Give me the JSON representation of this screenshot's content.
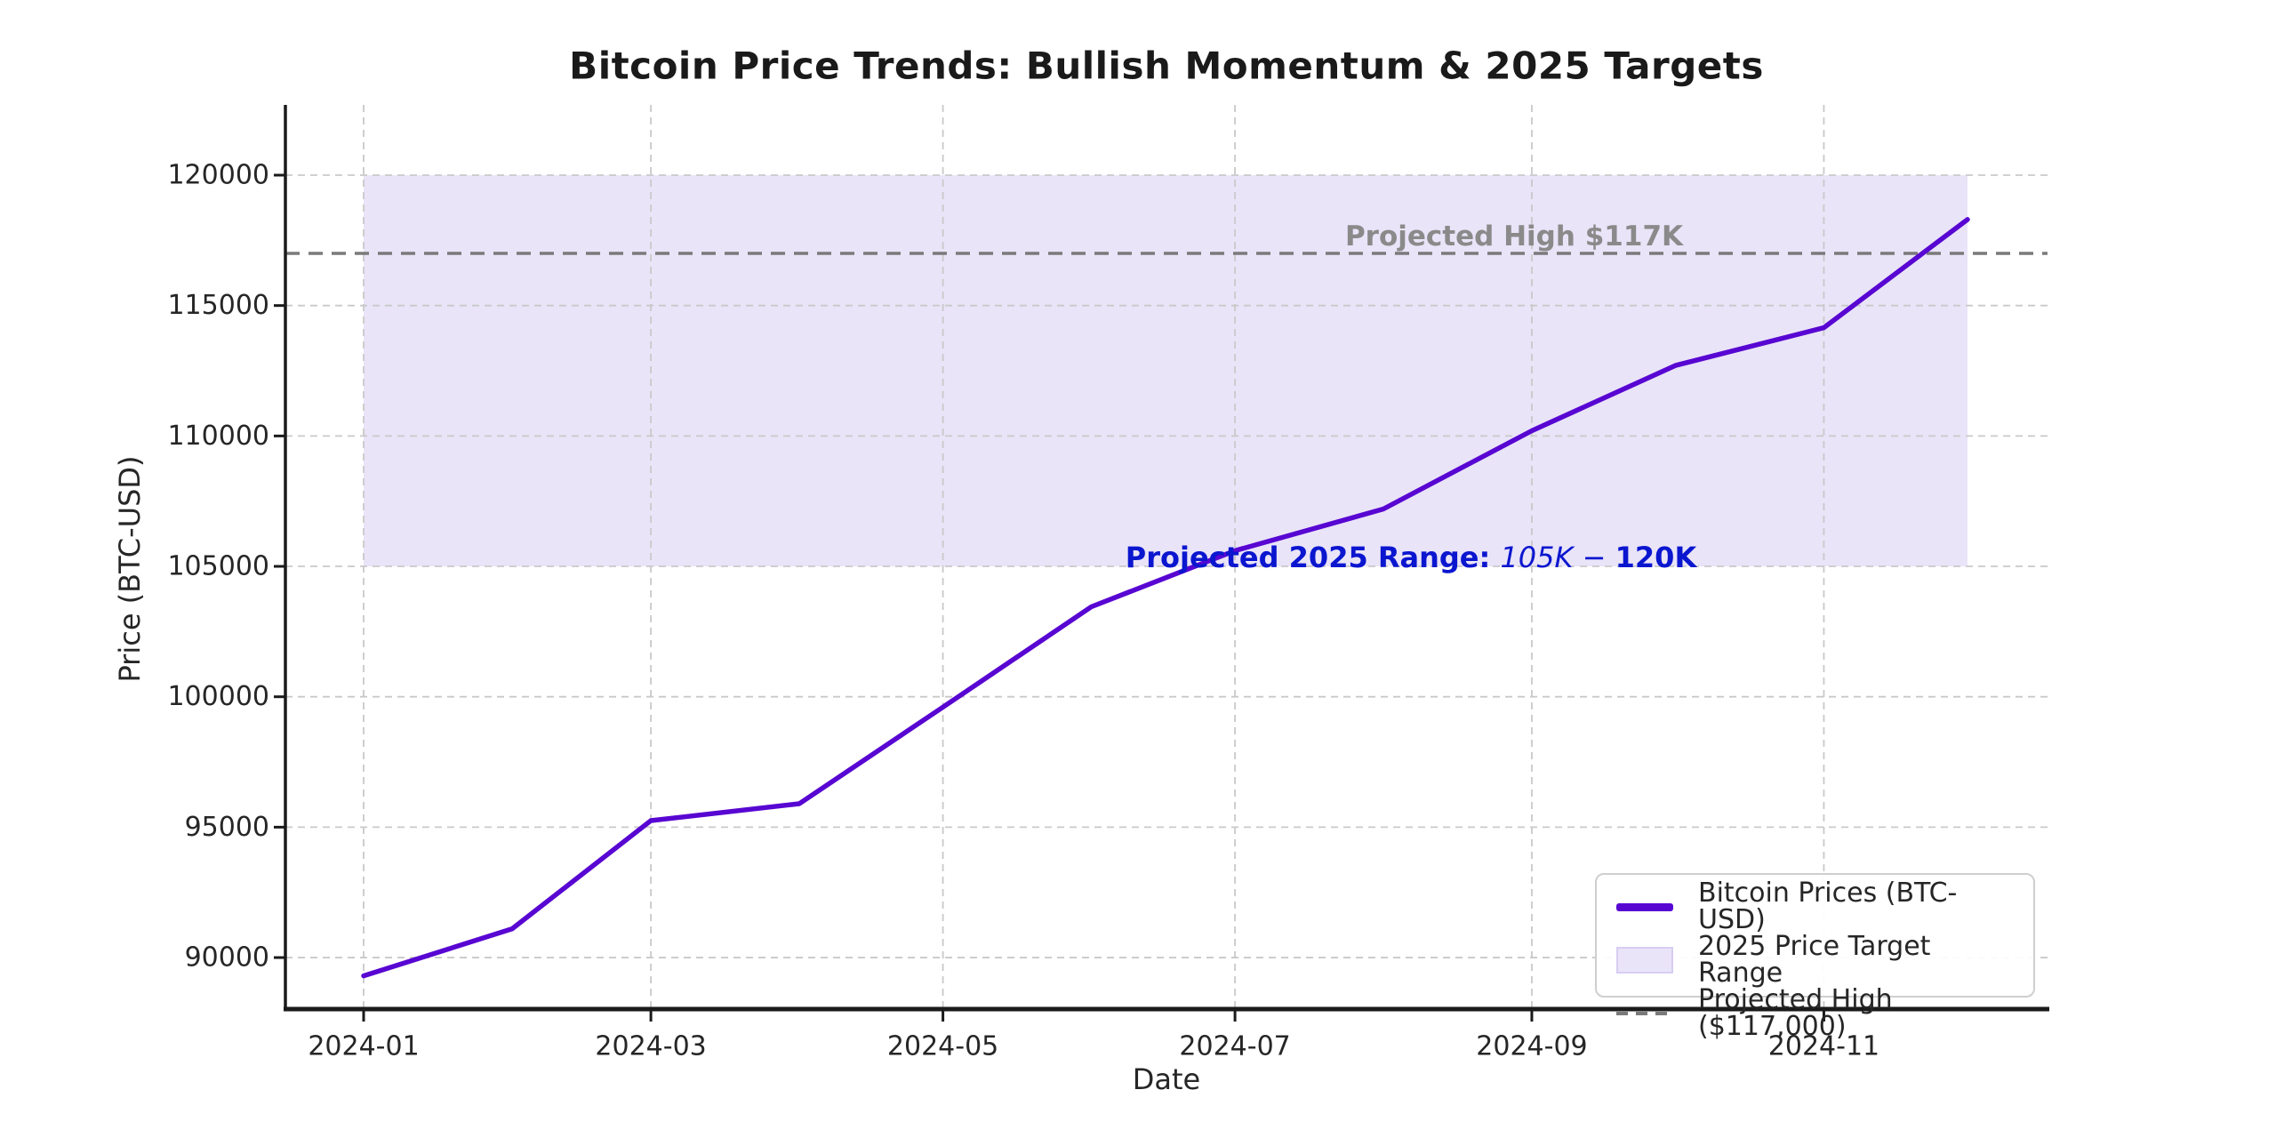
{
  "figure": {
    "title": "Bitcoin Price Trends: Bullish Momentum & 2025 Targets"
  },
  "chart_data": {
    "type": "line",
    "title": "Bitcoin Price Trends: Bullish Momentum & 2025 Targets",
    "xlabel": "Date",
    "ylabel": "Price (BTC-USD)",
    "x": [
      "2024-01",
      "2024-02",
      "2024-03",
      "2024-04",
      "2024-05",
      "2024-06",
      "2024-07",
      "2024-08",
      "2024-09",
      "2024-10",
      "2024-11",
      "2024-12"
    ],
    "series": [
      {
        "name": "Bitcoin Prices (BTC-USD)",
        "values": [
          89300,
          91100,
          95250,
          95900,
          99600,
          103450,
          105600,
          107200,
          110200,
          112700,
          114150,
          118300
        ]
      }
    ],
    "xticks": [
      "2024-01",
      "2024-03",
      "2024-05",
      "2024-07",
      "2024-09",
      "2024-11"
    ],
    "yticks": [
      90000,
      95000,
      100000,
      105000,
      110000,
      115000,
      120000
    ],
    "ylim": [
      88000,
      122700
    ],
    "grid": true,
    "legend_position": "lower right",
    "band": {
      "label": "2025 Price Target Range",
      "from": 105000,
      "to": 120000,
      "x_from": "2024-01",
      "x_to": "2024-12"
    },
    "hline": {
      "label": "Projected High ($117,000)",
      "value": 117000
    }
  },
  "annotations": {
    "projected_high": {
      "text": "Projected High $117K"
    },
    "range": {
      "parts": [
        "Projected 2025 Range: ",
        "105K",
        " − ",
        "120K"
      ]
    }
  },
  "legend": {
    "items": [
      {
        "label": "Bitcoin Prices (BTC-USD)",
        "swatch": "line"
      },
      {
        "label": "2025 Price Target Range",
        "swatch": "patch"
      },
      {
        "label": "Projected High ($117,000)",
        "swatch": "dashed-line"
      }
    ]
  },
  "style": {
    "accent": "#5806d2",
    "band_fill": "#e9e4f8",
    "band_border": "#d8cdf2",
    "hline_gray": "#7a7a7a",
    "grid_gray": "#c9c9c9",
    "annotation_blue": "#0b16cf",
    "annotation_gray": "#8a8a8a",
    "tick_text": "#262626",
    "spine_black": "#1a1a1a"
  }
}
